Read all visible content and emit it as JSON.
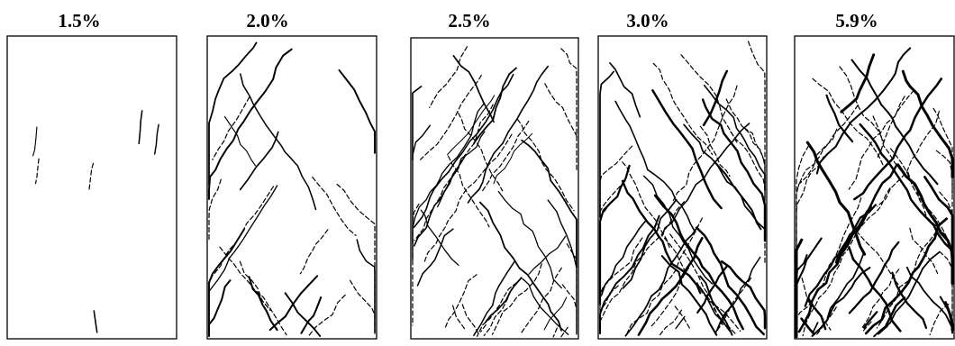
{
  "panels": [
    {
      "label": "1.5%"
    },
    {
      "label": "2.0%"
    },
    {
      "label": "2.5%"
    },
    {
      "label": "3.0%"
    },
    {
      "label": "5.9%"
    }
  ]
}
